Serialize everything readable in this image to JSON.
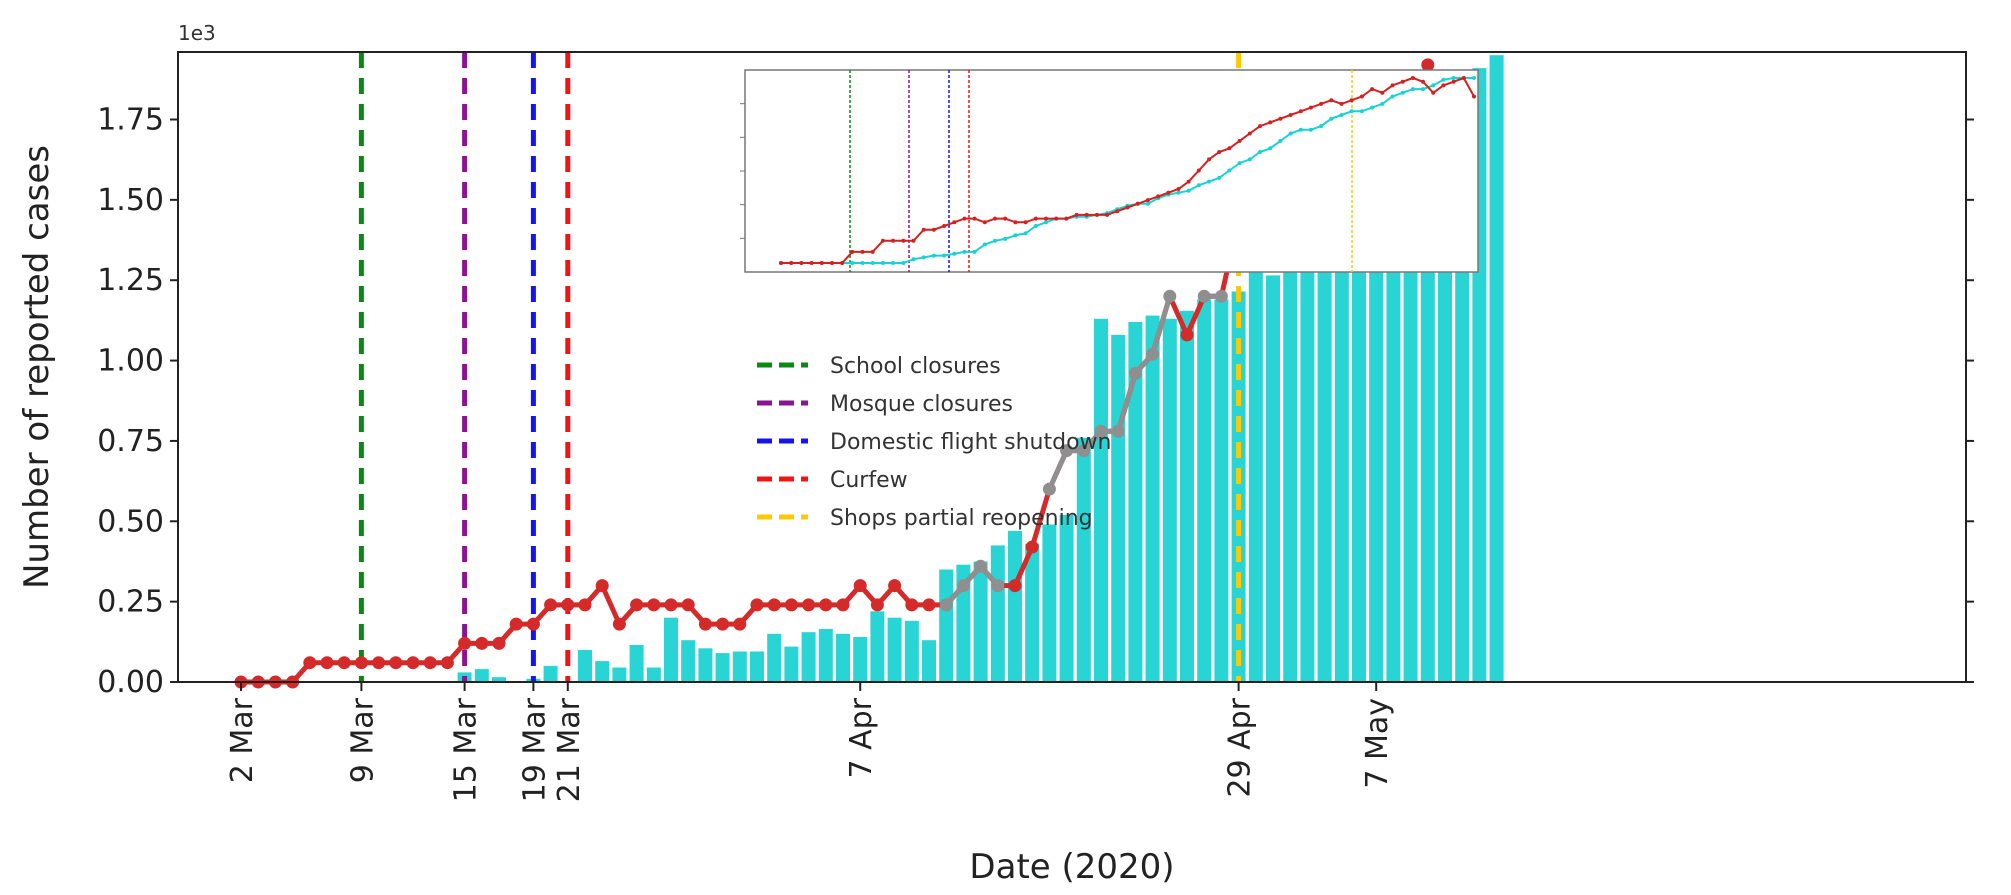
{
  "chart_data": {
    "type": "bar",
    "scale_label": "1e3",
    "xlabel": "Date (2020)",
    "ylabel": "Number of reported cases",
    "ylim": [
      0,
      1.96
    ],
    "yticks": [
      "0.00",
      "0.25",
      "0.50",
      "0.75",
      "1.00",
      "1.25",
      "1.50",
      "1.75"
    ],
    "ytick_values": [
      0,
      0.25,
      0.5,
      0.75,
      1.0,
      1.25,
      1.5,
      1.75
    ],
    "x_start": "2020-03-02",
    "xticks": [
      {
        "label": "2 Mar",
        "date": "2020-03-02"
      },
      {
        "label": "9 Mar",
        "date": "2020-03-09"
      },
      {
        "label": "15 Mar",
        "date": "2020-03-15"
      },
      {
        "label": "19 Mar",
        "date": "2020-03-19"
      },
      {
        "label": "21 Mar",
        "date": "2020-03-21"
      },
      {
        "label": "7 Apr",
        "date": "2020-04-07"
      },
      {
        "label": "29 Apr",
        "date": "2020-04-29"
      },
      {
        "label": "7 May",
        "date": "2020-05-07"
      }
    ],
    "bar_color": "#28d4d4",
    "line_color": "#d42a2a",
    "line_color_faded": "#8f8f8f",
    "bars": [
      0,
      0,
      0,
      0,
      0,
      0,
      0,
      0,
      0,
      0,
      0,
      0,
      0,
      0.03,
      0.04,
      0.015,
      0,
      0.01,
      0.05,
      0,
      0.1,
      0.065,
      0.045,
      0.115,
      0.045,
      0.2,
      0.13,
      0.105,
      0.09,
      0.095,
      0.095,
      0.15,
      0.11,
      0.155,
      0.165,
      0.15,
      0.14,
      0.22,
      0.2,
      0.19,
      0.13,
      0.35,
      0.365,
      0.375,
      0.425,
      0.47,
      0.43,
      0.49,
      0.52,
      0.76,
      1.13,
      1.08,
      1.12,
      1.14,
      1.13,
      1.155,
      1.19,
      1.19,
      1.215,
      1.285,
      1.265,
      1.32,
      1.345,
      1.335,
      1.36,
      1.55,
      1.64,
      1.59,
      1.67,
      1.79,
      1.7,
      1.7,
      1.91,
      1.95
    ],
    "line": [
      0,
      0,
      0,
      0,
      0.06,
      0.06,
      0.06,
      0.06,
      0.06,
      0.06,
      0.06,
      0.06,
      0.06,
      0.12,
      0.12,
      0.12,
      0.18,
      0.18,
      0.24,
      0.24,
      0.24,
      0.3,
      0.18,
      0.24,
      0.24,
      0.24,
      0.24,
      0.18,
      0.18,
      0.18,
      0.24,
      0.24,
      0.24,
      0.24,
      0.24,
      0.24,
      0.3,
      0.24,
      0.3,
      0.24,
      0.24,
      0.24,
      0.3,
      0.36,
      0.3,
      0.3,
      0.42,
      0.6,
      0.72,
      0.72,
      0.78,
      0.78,
      0.96,
      1.02,
      1.2,
      1.08,
      1.2,
      1.2,
      1.44,
      1.38,
      1.44,
      1.32,
      1.74,
      1.62,
      1.62,
      1.62,
      1.62,
      1.68,
      1.74,
      1.92,
      1.8,
      1.62
    ],
    "line_faded_ranges": [
      [
        41,
        44
      ],
      [
        47,
        54
      ],
      [
        56,
        57
      ]
    ],
    "events": [
      {
        "label": "School closures",
        "date": "2020-03-09",
        "color": "#0a8a14"
      },
      {
        "label": "Mosque closures",
        "date": "2020-03-15",
        "color": "#8a1591"
      },
      {
        "label": "Domestic flight shutdown",
        "date": "2020-03-19",
        "color": "#1414ee"
      },
      {
        "label": "Curfew",
        "date": "2020-03-21",
        "color": "#f01414"
      },
      {
        "label": "Shops partial reopening",
        "date": "2020-04-29",
        "color": "#ffc800"
      }
    ],
    "legend_position": "center",
    "inset": {
      "cyan_color": "#19d2d2",
      "red_color": "#d42020",
      "cyan": [
        0,
        0,
        0,
        0,
        0,
        0,
        0,
        0,
        0,
        0,
        0,
        0,
        0,
        0.02,
        0.03,
        0.04,
        0.04,
        0.05,
        0.06,
        0.06,
        0.1,
        0.12,
        0.13,
        0.15,
        0.16,
        0.2,
        0.22,
        0.24,
        0.24,
        0.25,
        0.25,
        0.26,
        0.27,
        0.29,
        0.31,
        0.32,
        0.32,
        0.35,
        0.37,
        0.38,
        0.39,
        0.42,
        0.44,
        0.46,
        0.5,
        0.54,
        0.56,
        0.6,
        0.62,
        0.66,
        0.7,
        0.72,
        0.72,
        0.74,
        0.78,
        0.8,
        0.82,
        0.82,
        0.84,
        0.86,
        0.9,
        0.92,
        0.94,
        0.94,
        0.96,
        0.99,
        1.0,
        1.0,
        1.0
      ],
      "red": [
        0,
        0,
        0,
        0,
        0,
        0,
        0,
        0.06,
        0.06,
        0.06,
        0.12,
        0.12,
        0.12,
        0.12,
        0.18,
        0.18,
        0.2,
        0.22,
        0.24,
        0.24,
        0.22,
        0.24,
        0.24,
        0.22,
        0.22,
        0.24,
        0.24,
        0.24,
        0.24,
        0.26,
        0.26,
        0.26,
        0.26,
        0.28,
        0.3,
        0.32,
        0.34,
        0.36,
        0.38,
        0.4,
        0.44,
        0.5,
        0.56,
        0.6,
        0.62,
        0.66,
        0.7,
        0.74,
        0.76,
        0.78,
        0.8,
        0.82,
        0.84,
        0.86,
        0.88,
        0.86,
        0.88,
        0.9,
        0.94,
        0.92,
        0.96,
        0.98,
        1.0,
        0.98,
        0.92,
        0.96,
        0.98,
        1.0,
        0.9
      ]
    }
  }
}
